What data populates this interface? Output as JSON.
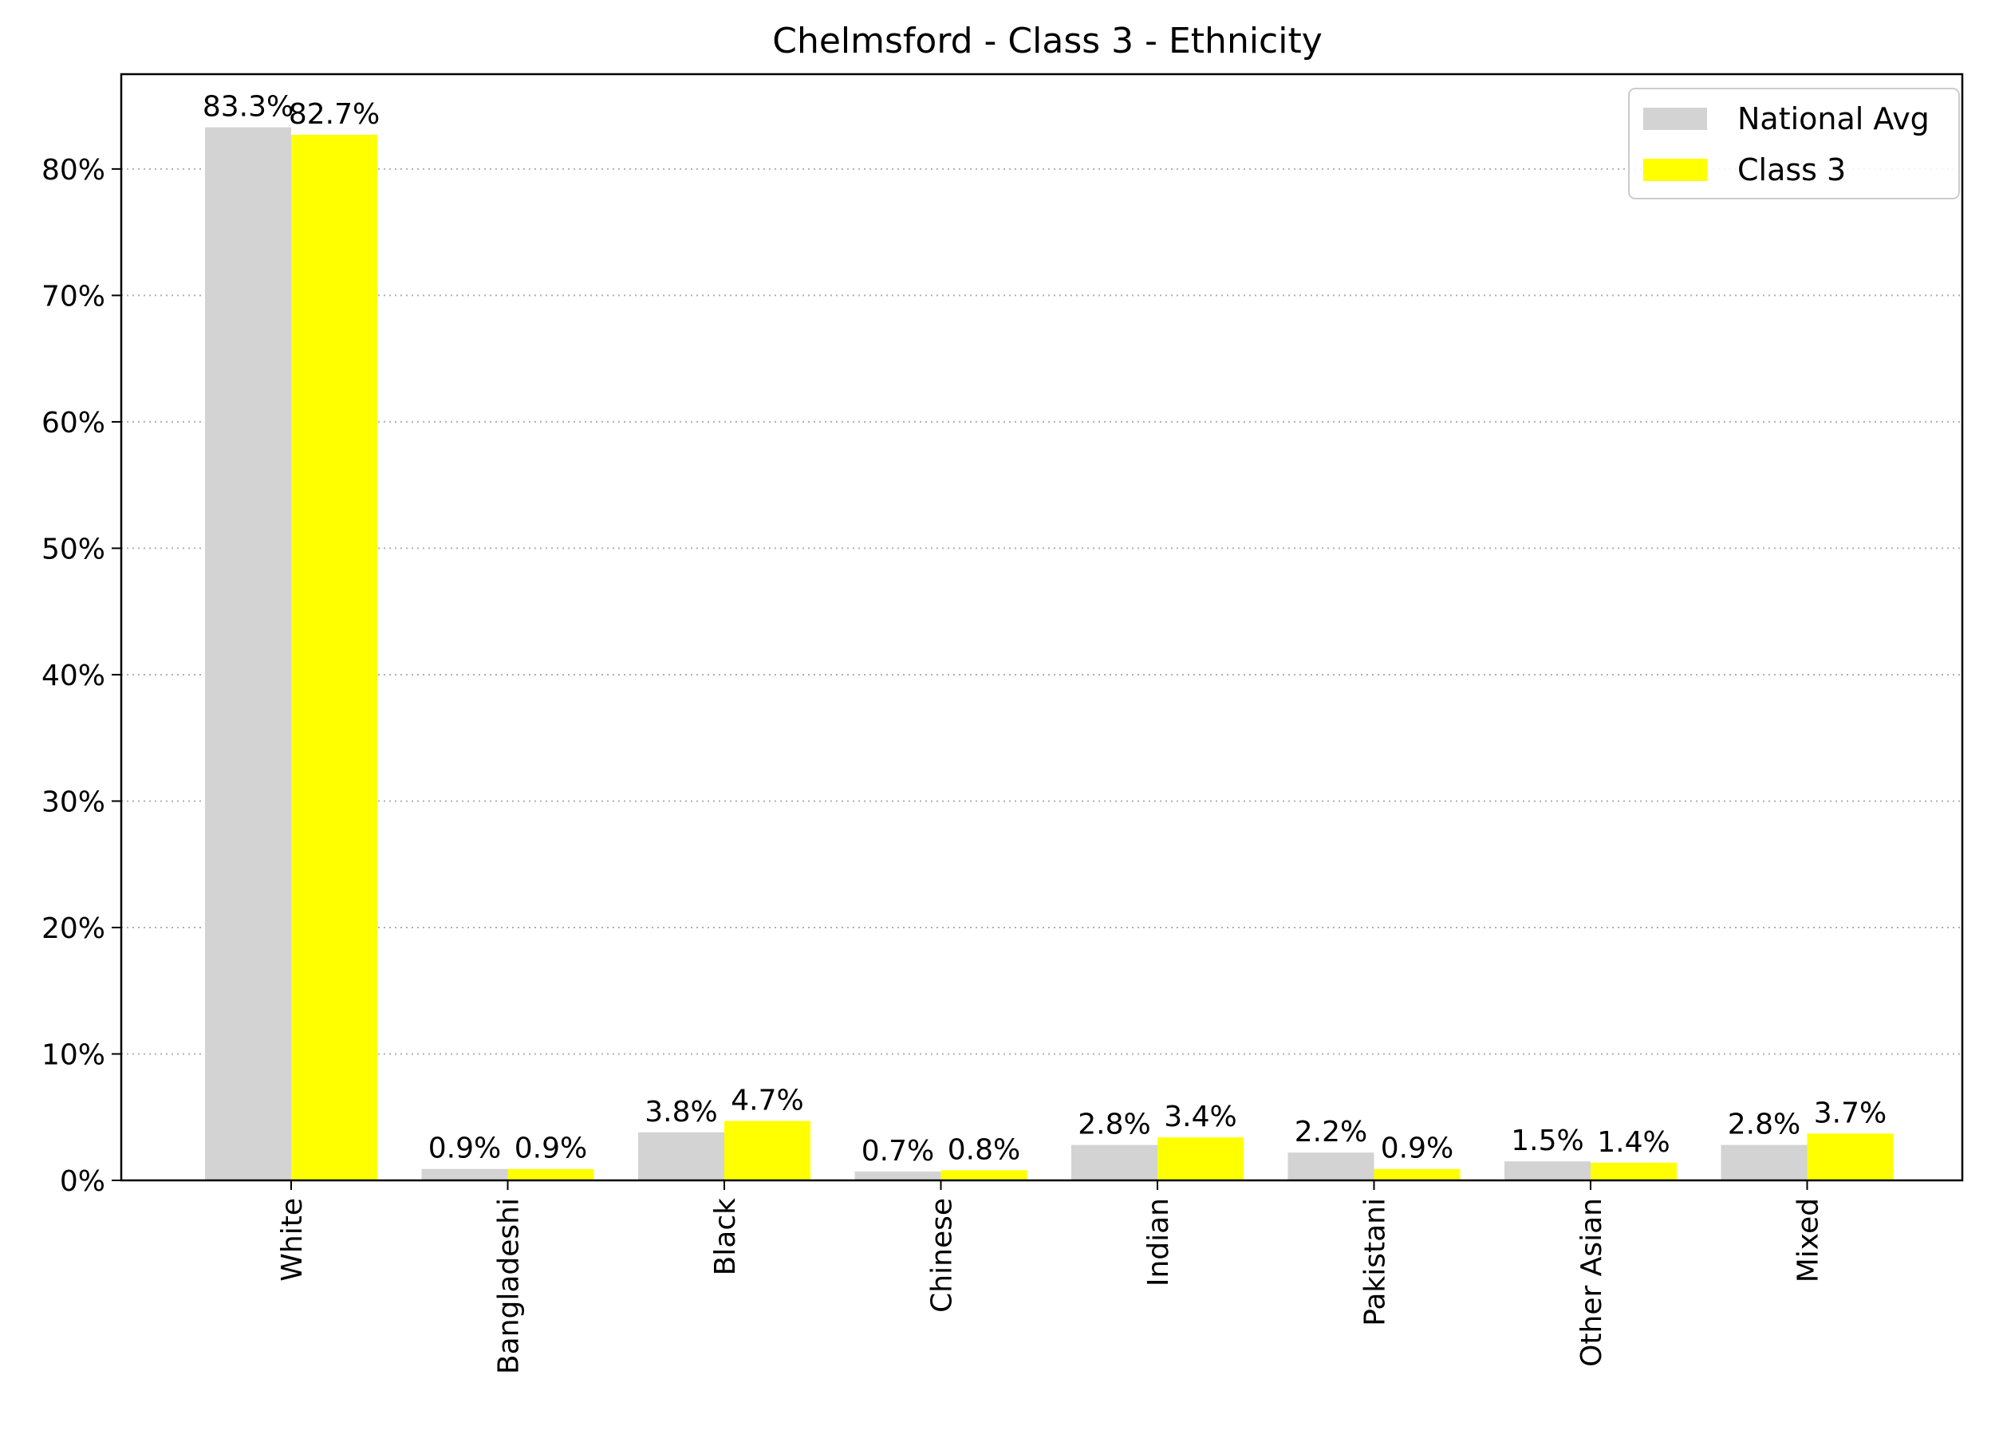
{
  "chart_data": {
    "type": "bar",
    "title": "Chelmsford - Class 3 - Ethnicity",
    "xlabel": "",
    "ylabel": "",
    "categories": [
      "White",
      "Bangladeshi",
      "Black",
      "Chinese",
      "Indian",
      "Pakistani",
      "Other Asian",
      "Mixed"
    ],
    "series": [
      {
        "name": "National Avg",
        "color": "#d3d3d3",
        "values": [
          83.3,
          0.9,
          3.8,
          0.7,
          2.8,
          2.2,
          1.5,
          2.8
        ],
        "labels": [
          "83.3%",
          "0.9%",
          "3.8%",
          "0.7%",
          "2.8%",
          "2.2%",
          "1.5%",
          "2.8%"
        ]
      },
      {
        "name": "Class 3",
        "color": "#ffff00",
        "values": [
          82.7,
          0.9,
          4.7,
          0.8,
          3.4,
          0.9,
          1.4,
          3.7
        ],
        "labels": [
          "82.7%",
          "0.9%",
          "4.7%",
          "0.8%",
          "3.4%",
          "0.9%",
          "1.4%",
          "3.7%"
        ]
      }
    ],
    "yticks": [
      0,
      10,
      20,
      30,
      40,
      50,
      60,
      70,
      80
    ],
    "ytick_labels": [
      "0%",
      "10%",
      "20%",
      "30%",
      "40%",
      "50%",
      "60%",
      "70%",
      "80%"
    ],
    "ylim": [
      0,
      87.5
    ],
    "grid": "horizontal-dotted",
    "legend_position": "top-right"
  }
}
